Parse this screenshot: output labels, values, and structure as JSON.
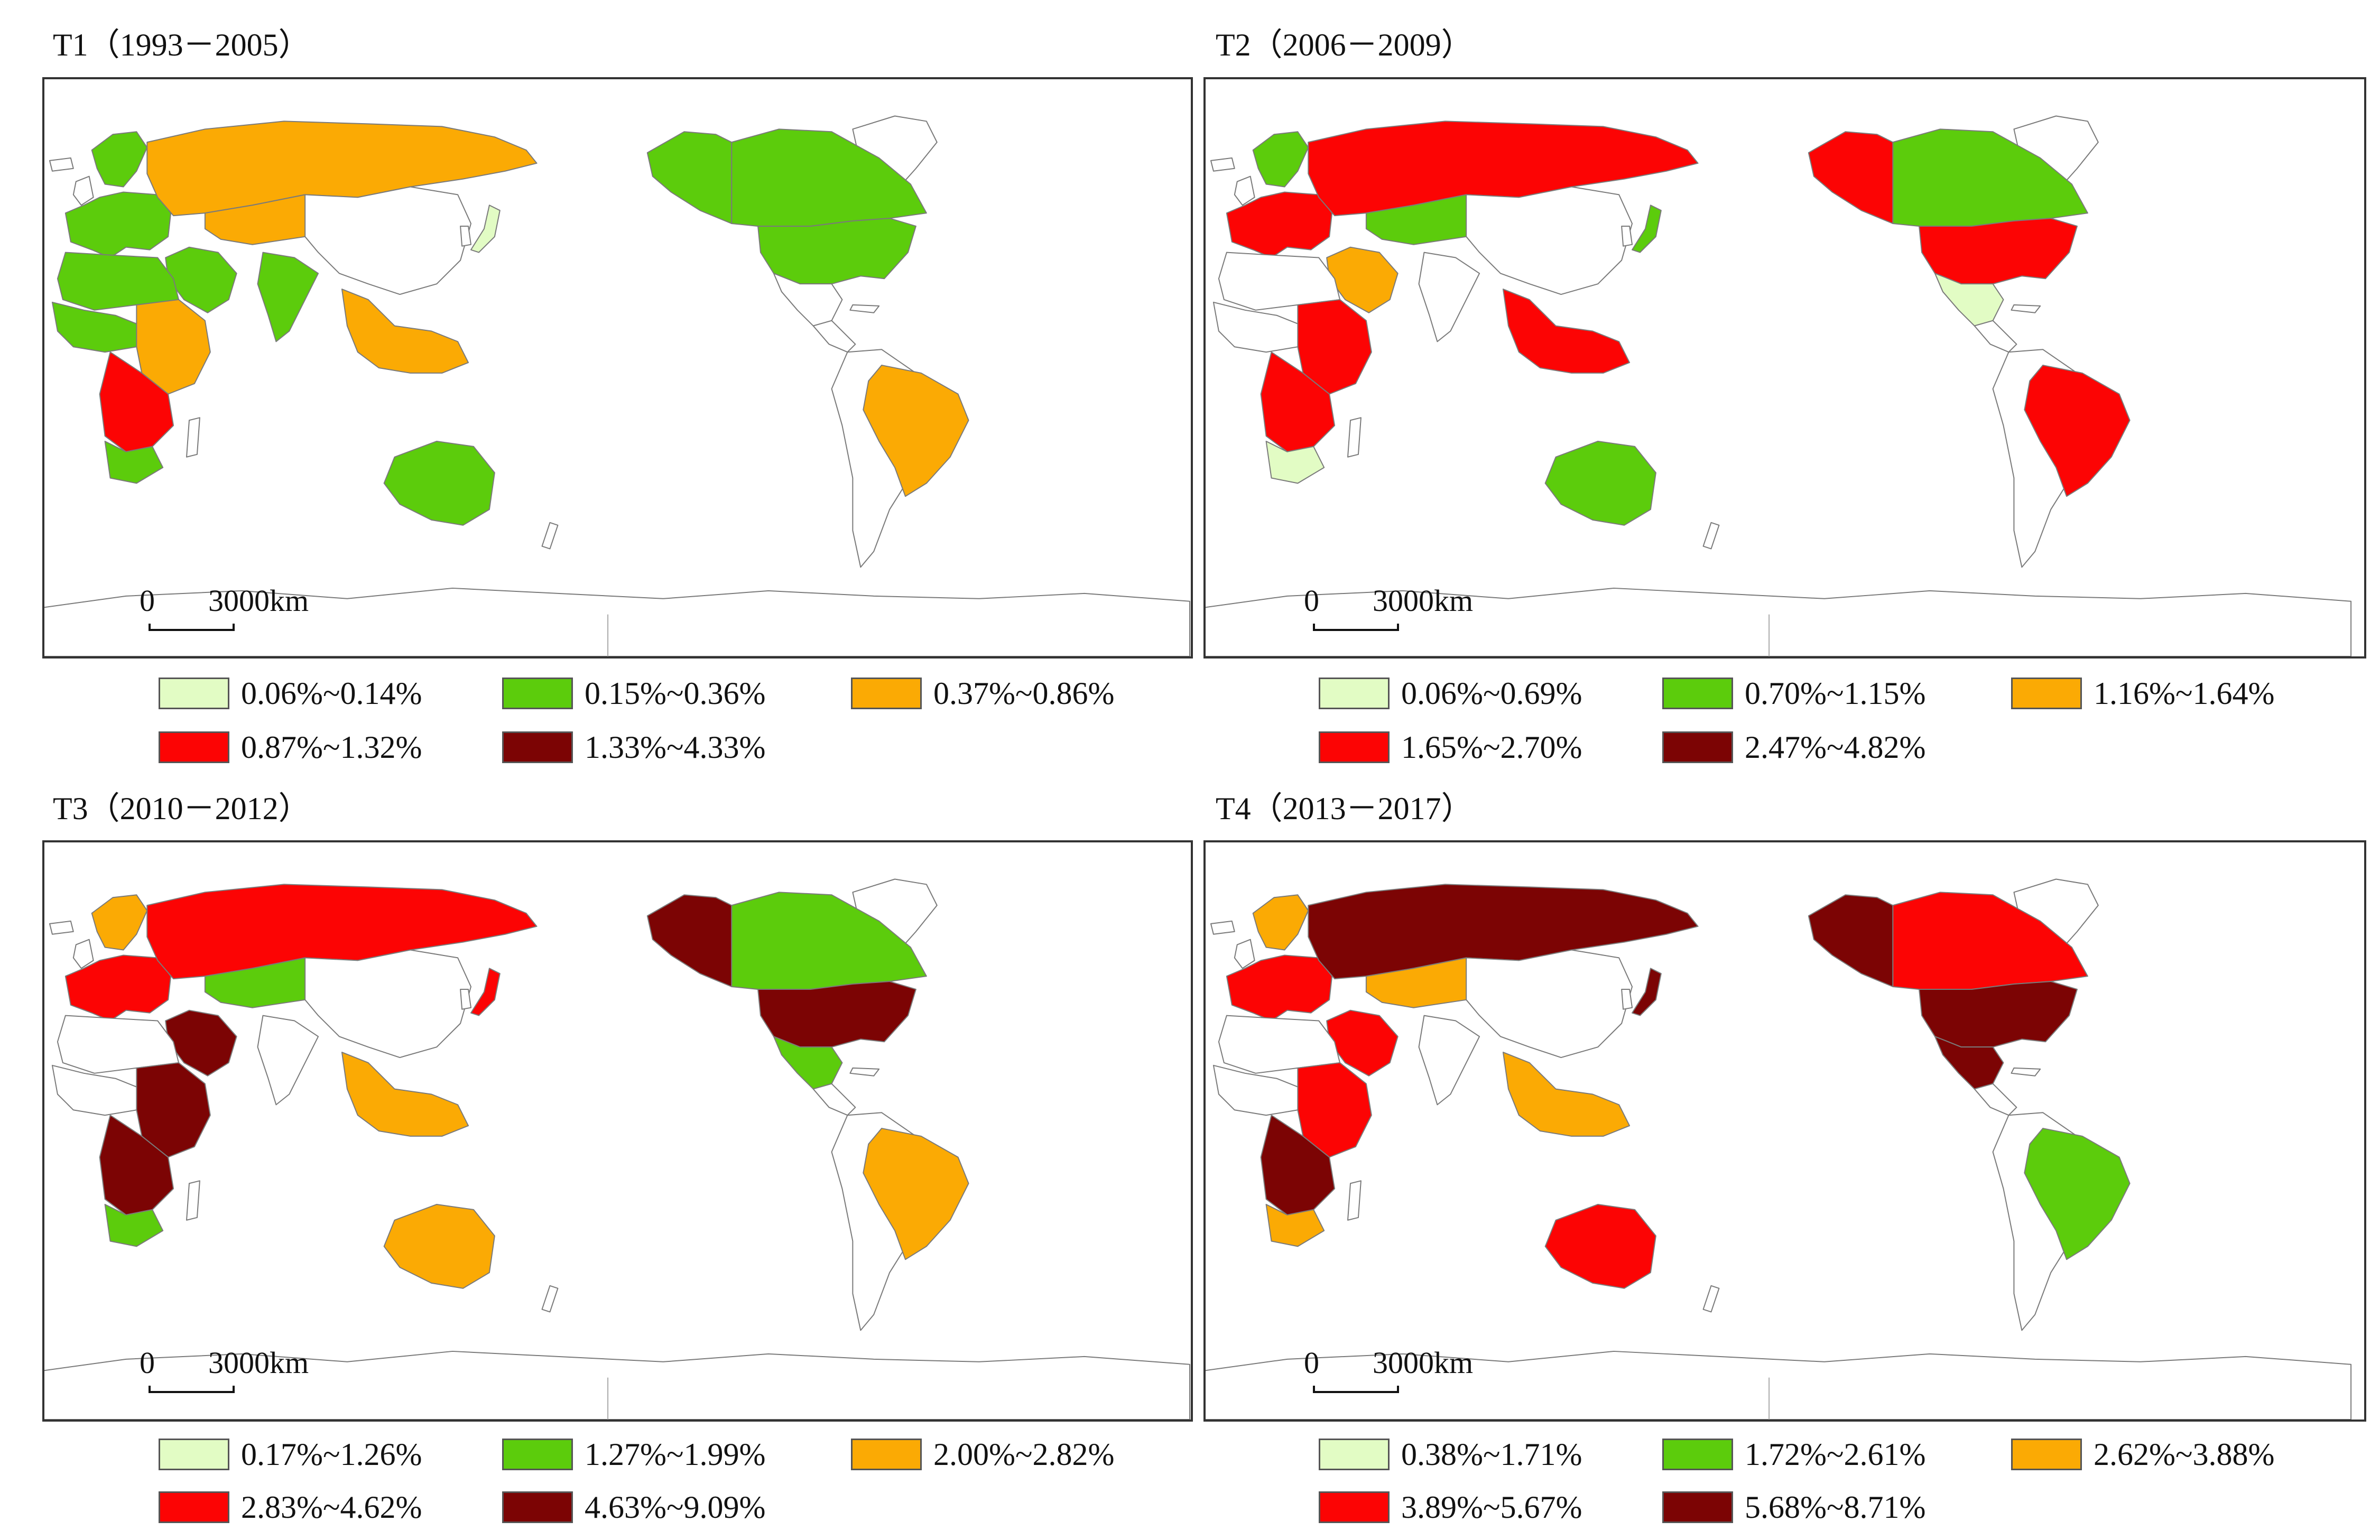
{
  "colors": {
    "c1": "#e2fcc4",
    "c2": "#5ccc0c",
    "c3": "#fbaa04",
    "c4": "#fc0404",
    "c5": "#7c0404",
    "none": "#ffffff"
  },
  "scale": {
    "zero": "0",
    "distance": "3000km"
  },
  "panels": [
    {
      "title": "T1（1993－2005）",
      "legend": [
        "0.06%~0.14%",
        "0.15%~0.36%",
        "0.37%~0.86%",
        "0.87%~1.32%",
        "1.33%~4.33%"
      ],
      "regions": {
        "canada": 2,
        "usa": 2,
        "mexico": 0,
        "alaska": 2,
        "brazil": 3,
        "south_america": 0,
        "europe": 2,
        "scandinavia": 2,
        "russia": 3,
        "central_asia": 3,
        "china": 0,
        "middle_east": 2,
        "india": 2,
        "north_africa": 2,
        "west_africa": 2,
        "east_africa": 3,
        "southern_africa": 4,
        "south_africa": 2,
        "australia": 2,
        "japan": 1,
        "se_asia": 3
      }
    },
    {
      "title": "T2（2006－2009）",
      "legend": [
        "0.06%~0.69%",
        "0.70%~1.15%",
        "1.16%~1.64%",
        "1.65%~2.70%",
        "2.47%~4.82%"
      ],
      "regions": {
        "canada": 2,
        "usa": 4,
        "mexico": 1,
        "alaska": 4,
        "brazil": 4,
        "south_america": 0,
        "europe": 4,
        "scandinavia": 2,
        "russia": 4,
        "central_asia": 2,
        "china": 0,
        "middle_east": 3,
        "india": 0,
        "north_africa": 0,
        "west_africa": 0,
        "east_africa": 4,
        "southern_africa": 4,
        "south_africa": 1,
        "australia": 2,
        "japan": 2,
        "se_asia": 4
      }
    },
    {
      "title": "T3（2010－2012）",
      "legend": [
        "0.17%~1.26%",
        "1.27%~1.99%",
        "2.00%~2.82%",
        "2.83%~4.62%",
        "4.63%~9.09%"
      ],
      "regions": {
        "canada": 2,
        "usa": 5,
        "mexico": 2,
        "alaska": 5,
        "brazil": 3,
        "south_america": 0,
        "europe": 4,
        "scandinavia": 3,
        "russia": 4,
        "central_asia": 2,
        "china": 0,
        "middle_east": 5,
        "india": 0,
        "north_africa": 0,
        "west_africa": 0,
        "east_africa": 5,
        "southern_africa": 5,
        "south_africa": 2,
        "australia": 3,
        "japan": 4,
        "se_asia": 3
      }
    },
    {
      "title": "T4（2013－2017）",
      "legend": [
        "0.38%~1.71%",
        "1.72%~2.61%",
        "2.62%~3.88%",
        "3.89%~5.67%",
        "5.68%~8.71%"
      ],
      "regions": {
        "canada": 4,
        "usa": 5,
        "mexico": 5,
        "alaska": 5,
        "brazil": 2,
        "south_america": 0,
        "europe": 4,
        "scandinavia": 3,
        "russia": 5,
        "central_asia": 3,
        "china": 0,
        "middle_east": 4,
        "india": 0,
        "north_africa": 0,
        "west_africa": 0,
        "east_africa": 4,
        "southern_africa": 5,
        "south_africa": 3,
        "australia": 4,
        "japan": 5,
        "se_asia": 3
      }
    }
  ]
}
